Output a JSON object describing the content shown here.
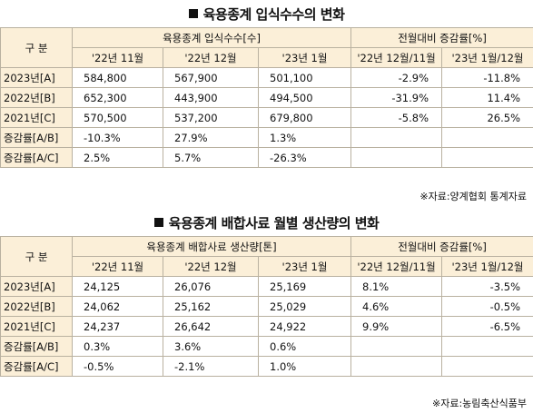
{
  "table1": {
    "title": "육용종계 입식수수의 변화",
    "header_label": "구 분",
    "group1": "육용종계 입식수수[수]",
    "group2": "전월대비 증감률[%]",
    "subheaders": [
      "'22년 11월",
      "'22년 12월",
      "'23년 1월",
      "'22년 12월/11월",
      "'23년 1월/12월"
    ],
    "rows": [
      {
        "label": "2023년[A]",
        "c1": "584,800",
        "c2": "567,900",
        "c3": "501,100",
        "c4": "-2.9%",
        "c5": "-11.8%"
      },
      {
        "label": "2022년[B]",
        "c1": "652,300",
        "c2": "443,900",
        "c3": "494,500",
        "c4": "-31.9%",
        "c5": "11.4%"
      },
      {
        "label": "2021년[C]",
        "c1": "570,500",
        "c2": "537,200",
        "c3": "679,800",
        "c4": "-5.8%",
        "c5": "26.5%"
      },
      {
        "label": "증감률[A/B]",
        "c1": "-10.3%",
        "c2": "27.9%",
        "c3": "1.3%",
        "c4": "",
        "c5": ""
      },
      {
        "label": "증감률[A/C]",
        "c1": "2.5%",
        "c2": "5.7%",
        "c3": "-26.3%",
        "c4": "",
        "c5": ""
      }
    ],
    "source": "※자료:양계협회 통계자료"
  },
  "table2": {
    "title": "육용종계 배합사료 월별 생산량의 변화",
    "header_label": "구 분",
    "group1": "육용종계 배합사료 생산량[톤]",
    "group2": "전월대비 증감률[%]",
    "subheaders": [
      "'22년 11월",
      "'22년 12월",
      "'23년 1월",
      "'22년 12월/11월",
      "'23년 1월/12월"
    ],
    "rows": [
      {
        "label": "2023년[A]",
        "c1": "24,125",
        "c2": "26,076",
        "c3": "25,169",
        "c4": "8.1%",
        "c5": "-3.5%"
      },
      {
        "label": "2022년[B]",
        "c1": "24,062",
        "c2": "25,162",
        "c3": "25,029",
        "c4": "4.6%",
        "c5": "-0.5%"
      },
      {
        "label": "2021년[C]",
        "c1": "24,237",
        "c2": "26,642",
        "c3": "24,922",
        "c4": "9.9%",
        "c5": "-6.5%"
      },
      {
        "label": "증감률[A/B]",
        "c1": "0.3%",
        "c2": "3.6%",
        "c3": "0.6%",
        "c4": "",
        "c5": ""
      },
      {
        "label": "증감률[A/C]",
        "c1": "-0.5%",
        "c2": "-2.1%",
        "c3": "1.0%",
        "c4": "",
        "c5": ""
      }
    ],
    "source": "※자료:농림축산식품부"
  }
}
